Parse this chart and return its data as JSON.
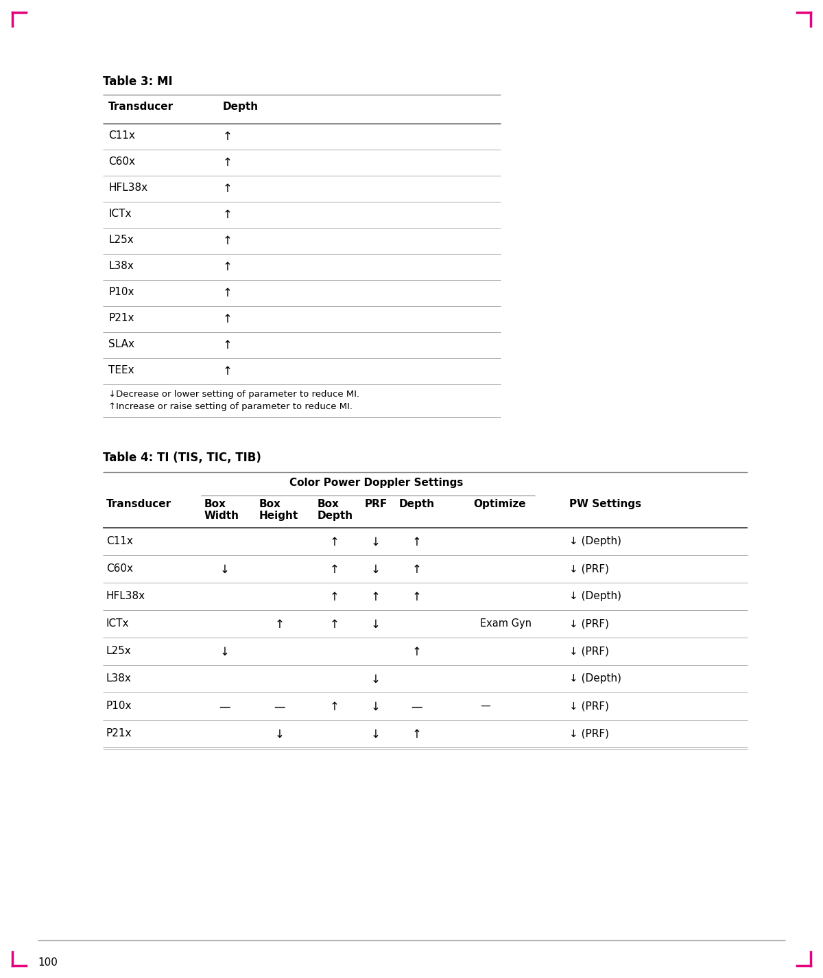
{
  "page_num": "100",
  "bg_color": "#ffffff",
  "table3_title": "Table 3: MI",
  "table3_headers": [
    "Transducer",
    "Depth"
  ],
  "table3_rows": [
    [
      "C11x",
      "↑"
    ],
    [
      "C60x",
      "↑"
    ],
    [
      "HFL38x",
      "↑"
    ],
    [
      "ICTx",
      "↑"
    ],
    [
      "L25x",
      "↑"
    ],
    [
      "L38x",
      "↑"
    ],
    [
      "P10x",
      "↑"
    ],
    [
      "P21x",
      "↑"
    ],
    [
      "SLAx",
      "↑"
    ],
    [
      "TEEx",
      "↑"
    ]
  ],
  "table3_footnotes": [
    "↓Decrease or lower setting of parameter to reduce MI.",
    "↑Increase or raise setting of parameter to reduce MI."
  ],
  "table4_title": "Table 4: TI (TIS, TIC, TIB)",
  "table4_group_header": "Color Power Doppler Settings",
  "table4_headers": [
    "Transducer",
    "Box\nWidth",
    "Box\nHeight",
    "Box\nDepth",
    "PRF",
    "Depth",
    "Optimize",
    "PW Settings"
  ],
  "table4_rows": [
    [
      "C11x",
      "",
      "",
      "↑",
      "↓",
      "↑",
      "",
      "↓ (Depth)"
    ],
    [
      "C60x",
      "↓",
      "",
      "↑",
      "↓",
      "↑",
      "",
      "↓ (PRF)"
    ],
    [
      "HFL38x",
      "",
      "",
      "↑",
      "↑",
      "↑",
      "",
      "↓ (Depth)"
    ],
    [
      "ICTx",
      "",
      "↑",
      "↑",
      "↓",
      "",
      "Exam Gyn",
      "↓ (PRF)"
    ],
    [
      "L25x",
      "↓",
      "",
      "",
      "",
      "↑",
      "",
      "↓ (PRF)"
    ],
    [
      "L38x",
      "",
      "",
      "",
      "↓",
      "",
      "",
      "↓ (Depth)"
    ],
    [
      "P10x",
      "—",
      "—",
      "↑",
      "↓",
      "—",
      "—",
      "↓ (PRF)"
    ],
    [
      "P21x",
      "",
      "↓",
      "",
      "↓",
      "↑",
      "",
      "↓ (PRF)"
    ]
  ]
}
